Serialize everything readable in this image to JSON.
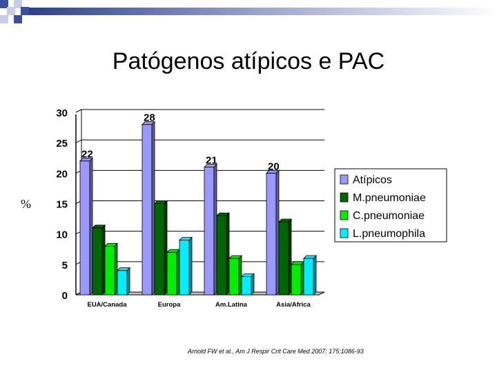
{
  "slide": {
    "title": "Patógenos atípicos e PAC",
    "citation": "Arnold FW et al., Am J Respir Crit Care Med 2007; 175:1086-93"
  },
  "chart_data": {
    "type": "bar",
    "title": "",
    "xlabel": "",
    "ylabel": "%",
    "ylim": [
      0,
      30
    ],
    "yticks": [
      0,
      5,
      10,
      15,
      20,
      25,
      30
    ],
    "grid": true,
    "legend_position": "right",
    "categories": [
      "EUA/Canada",
      "Europa",
      "Am.Latina",
      "Asia/Africa"
    ],
    "series": [
      {
        "name": "Atípicos",
        "color": "#9999ff",
        "values": [
          22,
          28,
          21,
          20
        ],
        "labels": [
          "22",
          "28",
          "21",
          "20"
        ]
      },
      {
        "name": "M.pneumoniae",
        "color": "#006600",
        "values": [
          11,
          15,
          13,
          12
        ]
      },
      {
        "name": "C.pneumoniae",
        "color": "#00ee00",
        "values": [
          8,
          7,
          6,
          5
        ]
      },
      {
        "name": "L.pneumophila",
        "color": "#00eeff",
        "values": [
          4,
          9,
          3,
          6
        ]
      }
    ]
  }
}
